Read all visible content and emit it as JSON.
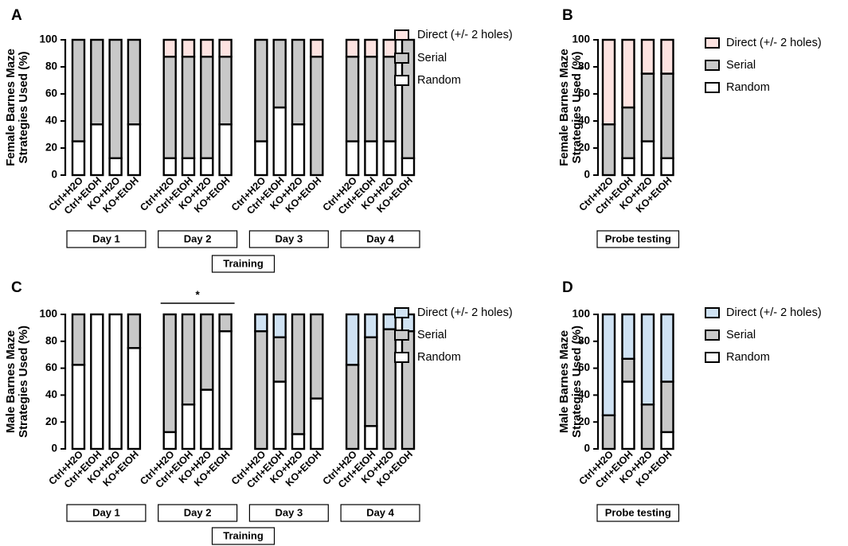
{
  "chart_data": [
    {
      "panel": "A",
      "type": "bar",
      "stacked": true,
      "ylabel_line1": "Female Barnes Maze",
      "ylabel_line2": "Strategies Used (%)",
      "ylim": [
        0,
        100
      ],
      "yticks": [
        0,
        20,
        40,
        60,
        80,
        100
      ],
      "groups": [
        {
          "label": "Day 1",
          "bars": [
            {
              "label": "Ctrl+H2O",
              "random": 25,
              "serial": 75,
              "direct": 0
            },
            {
              "label": "Ctrl+EtOH",
              "random": 37.5,
              "serial": 62.5,
              "direct": 0
            },
            {
              "label": "KO+H2O",
              "random": 12.5,
              "serial": 87.5,
              "direct": 0
            },
            {
              "label": "KO+EtOH",
              "random": 37.5,
              "serial": 62.5,
              "direct": 0
            }
          ]
        },
        {
          "label": "Day 2",
          "bars": [
            {
              "label": "Ctrl+H2O",
              "random": 12.5,
              "serial": 75,
              "direct": 12.5
            },
            {
              "label": "Ctrl+EtOH",
              "random": 12.5,
              "serial": 75,
              "direct": 12.5
            },
            {
              "label": "KO+H2O",
              "random": 12.5,
              "serial": 75,
              "direct": 12.5
            },
            {
              "label": "KO+EtOH",
              "random": 37.5,
              "serial": 50,
              "direct": 12.5
            }
          ]
        },
        {
          "label": "Day 3",
          "bars": [
            {
              "label": "Ctrl+H2O",
              "random": 25,
              "serial": 75,
              "direct": 0
            },
            {
              "label": "Ctrl+EtOH",
              "random": 50,
              "serial": 50,
              "direct": 0
            },
            {
              "label": "KO+H2O",
              "random": 37.5,
              "serial": 62.5,
              "direct": 0
            },
            {
              "label": "KO+EtOH",
              "random": 0,
              "serial": 87.5,
              "direct": 12.5
            }
          ]
        },
        {
          "label": "Day 4",
          "bars": [
            {
              "label": "Ctrl+H2O",
              "random": 25,
              "serial": 62.5,
              "direct": 12.5
            },
            {
              "label": "Ctrl+EtOH",
              "random": 25,
              "serial": 62.5,
              "direct": 12.5
            },
            {
              "label": "KO+H2O",
              "random": 25,
              "serial": 62.5,
              "direct": 12.5
            },
            {
              "label": "KO+EtOH",
              "random": 12.5,
              "serial": 87.5,
              "direct": 0
            }
          ]
        }
      ],
      "super_label": "Training",
      "significance": [],
      "direct_color": "#fde3e1",
      "legend": [
        "Direct (+/- 2 holes)",
        "Serial",
        "Random"
      ]
    },
    {
      "panel": "B",
      "type": "bar",
      "stacked": true,
      "ylabel_line1": "Female Barnes Maze",
      "ylabel_line2": "Strategies Used (%)",
      "ylim": [
        0,
        100
      ],
      "yticks": [
        0,
        20,
        40,
        60,
        80,
        100
      ],
      "groups": [
        {
          "label": "Probe testing",
          "bars": [
            {
              "label": "Ctrl+H2O",
              "random": 0,
              "serial": 37.5,
              "direct": 62.5
            },
            {
              "label": "Ctrl+EtOH",
              "random": 12.5,
              "serial": 37.5,
              "direct": 50
            },
            {
              "label": "KO+H2O",
              "random": 25,
              "serial": 50,
              "direct": 25
            },
            {
              "label": "KO+EtOH",
              "random": 12.5,
              "serial": 62.5,
              "direct": 25
            }
          ]
        }
      ],
      "super_label": "",
      "significance": [],
      "direct_color": "#fde3e1",
      "legend": [
        "Direct (+/- 2 holes)",
        "Serial",
        "Random"
      ]
    },
    {
      "panel": "C",
      "type": "bar",
      "stacked": true,
      "ylabel_line1": "Male Barnes Maze",
      "ylabel_line2": "Strategies Used (%)",
      "ylim": [
        0,
        100
      ],
      "yticks": [
        0,
        20,
        40,
        60,
        80,
        100
      ],
      "groups": [
        {
          "label": "Day 1",
          "bars": [
            {
              "label": "Ctrl+H2O",
              "random": 62.5,
              "serial": 37.5,
              "direct": 0
            },
            {
              "label": "Ctrl+EtOH",
              "random": 100,
              "serial": 0,
              "direct": 0
            },
            {
              "label": "KO+H2O",
              "random": 100,
              "serial": 0,
              "direct": 0
            },
            {
              "label": "KO+EtOH",
              "random": 75,
              "serial": 25,
              "direct": 0
            }
          ]
        },
        {
          "label": "Day 2",
          "bars": [
            {
              "label": "Ctrl+H2O",
              "random": 12.5,
              "serial": 87.5,
              "direct": 0
            },
            {
              "label": "Ctrl+EtOH",
              "random": 33,
              "serial": 67,
              "direct": 0
            },
            {
              "label": "KO+H2O",
              "random": 44,
              "serial": 56,
              "direct": 0
            },
            {
              "label": "KO+EtOH",
              "random": 87.5,
              "serial": 12.5,
              "direct": 0
            }
          ]
        },
        {
          "label": "Day 3",
          "bars": [
            {
              "label": "Ctrl+H2O",
              "random": 0,
              "serial": 87.5,
              "direct": 12.5
            },
            {
              "label": "Ctrl+EtOH",
              "random": 50,
              "serial": 33,
              "direct": 17
            },
            {
              "label": "KO+H2O",
              "random": 11,
              "serial": 89,
              "direct": 0
            },
            {
              "label": "KO+EtOH",
              "random": 37.5,
              "serial": 62.5,
              "direct": 0
            }
          ]
        },
        {
          "label": "Day 4",
          "bars": [
            {
              "label": "Ctrl+H2O",
              "random": 0,
              "serial": 62.5,
              "direct": 37.5
            },
            {
              "label": "Ctrl+EtOH",
              "random": 17,
              "serial": 66,
              "direct": 17
            },
            {
              "label": "KO+H2O",
              "random": 0,
              "serial": 89,
              "direct": 11
            },
            {
              "label": "KO+EtOH",
              "random": 0,
              "serial": 87.5,
              "direct": 12.5
            }
          ]
        }
      ],
      "super_label": "Training",
      "significance": [
        {
          "label": "*",
          "group": 1
        }
      ],
      "direct_color": "#cfe2f3",
      "legend": [
        "Direct (+/- 2 holes)",
        "Serial",
        "Random"
      ]
    },
    {
      "panel": "D",
      "type": "bar",
      "stacked": true,
      "ylabel_line1": "Male Barnes Maze",
      "ylabel_line2": "Strategies Used (%)",
      "ylim": [
        0,
        100
      ],
      "yticks": [
        0,
        20,
        40,
        60,
        80,
        100
      ],
      "groups": [
        {
          "label": "Probe testing",
          "bars": [
            {
              "label": "Ctrl+H2O",
              "random": 0,
              "serial": 25,
              "direct": 75
            },
            {
              "label": "Ctrl+EtOH",
              "random": 50,
              "serial": 17,
              "direct": 33
            },
            {
              "label": "KO+H2O",
              "random": 0,
              "serial": 33,
              "direct": 67
            },
            {
              "label": "KO+EtOH",
              "random": 12.5,
              "serial": 37.5,
              "direct": 50
            }
          ]
        }
      ],
      "super_label": "",
      "significance": [],
      "direct_color": "#cfe2f3",
      "legend": [
        "Direct (+/- 2 holes)",
        "Serial",
        "Random"
      ]
    }
  ]
}
